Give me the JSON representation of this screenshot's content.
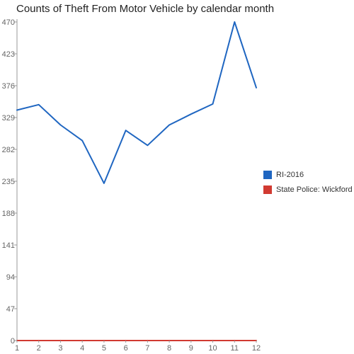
{
  "chart_data": {
    "type": "line",
    "title": "Counts of Theft From Motor Vehicle by calendar month",
    "x": [
      1,
      2,
      3,
      4,
      5,
      6,
      7,
      8,
      9,
      10,
      11,
      12
    ],
    "x_tick_labels": [
      "1",
      "2",
      "3",
      "4",
      "5",
      "6",
      "7",
      "8",
      "9",
      "10",
      "11",
      "12"
    ],
    "y_tick_labels": [
      "0",
      "47",
      "94",
      "141",
      "188",
      "235",
      "282",
      "329",
      "376",
      "423",
      "470"
    ],
    "ylim": [
      0,
      470
    ],
    "grid": false,
    "legend_position": "right",
    "series": [
      {
        "name": "RI-2016",
        "color": "#1f66c1",
        "values": [
          340,
          348,
          318,
          295,
          232,
          310,
          288,
          318,
          334,
          349,
          470,
          373
        ]
      },
      {
        "name": "State Police: Wickford",
        "color": "#d13a31",
        "values": [
          0,
          0,
          0,
          0,
          0,
          0,
          0,
          0,
          0,
          0,
          0,
          0
        ]
      }
    ]
  }
}
